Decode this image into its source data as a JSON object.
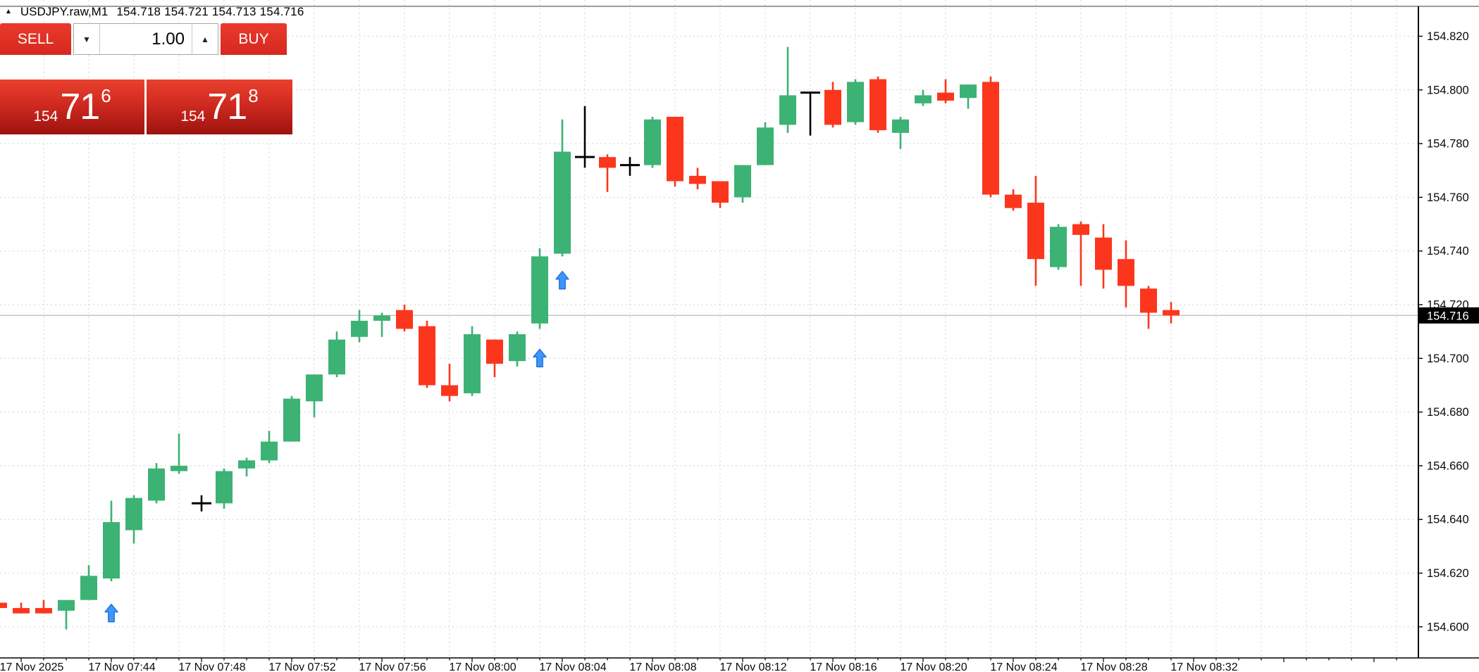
{
  "header": {
    "symbol_timeframe": "USDJPY.raw,M1",
    "ohlc_line": "154.718 154.721 154.713 154.716",
    "collapse_icon": "▲"
  },
  "trade_panel": {
    "sell_label": "SELL",
    "buy_label": "BUY",
    "volume_value": "1.00",
    "spin_down_icon": "▼",
    "spin_up_icon": "▲",
    "sell_price_prefix": "154",
    "sell_price_main": "71",
    "sell_price_sup": "6",
    "buy_price_prefix": "154",
    "buy_price_main": "71",
    "buy_price_sup": "8"
  },
  "colors": {
    "bull": "#3CB274",
    "bear": "#FC361D",
    "doji": "#000000",
    "marker_blue": "#3B97FC",
    "marker_blue_edge": "#1F6FD8",
    "grid": "#D4D4D4",
    "last_price_line": "#B9B9B9",
    "axis_text": "#0A0A0A",
    "tag_bg": "#000000",
    "tag_text": "#FFFFFF",
    "panel_red": "#E23028"
  },
  "chart_data": {
    "type": "candlestick",
    "symbol": "USDJPY.raw",
    "timeframe": "M1",
    "title": "USDJPY.raw,M1 154.718 154.721 154.713 154.716",
    "ylim": [
      154.598,
      154.823
    ],
    "grid": "dashed",
    "last_price": "154.716",
    "y_ticks": [
      "154.820",
      "154.800",
      "154.780",
      "154.760",
      "154.740",
      "154.720",
      "154.700",
      "154.680",
      "154.660",
      "154.640",
      "154.620",
      "154.600"
    ],
    "x_labels": [
      "17 Nov 2025",
      "17 Nov 07:44",
      "17 Nov 07:48",
      "17 Nov 07:52",
      "17 Nov 07:56",
      "17 Nov 08:00",
      "17 Nov 08:04",
      "17 Nov 08:08",
      "17 Nov 08:12",
      "17 Nov 08:16",
      "17 Nov 08:20",
      "17 Nov 08:24",
      "17 Nov 08:28",
      "17 Nov 08:32"
    ],
    "candles": [
      {
        "t": "07:39",
        "o": 154.609,
        "h": 154.61,
        "l": 154.606,
        "c": 154.607,
        "k": "down"
      },
      {
        "t": "07:40",
        "o": 154.607,
        "h": 154.609,
        "l": 154.605,
        "c": 154.605,
        "k": "down"
      },
      {
        "t": "07:41",
        "o": 154.607,
        "h": 154.61,
        "l": 154.605,
        "c": 154.605,
        "k": "down"
      },
      {
        "t": "07:42",
        "o": 154.606,
        "h": 154.61,
        "l": 154.599,
        "c": 154.61,
        "k": "up"
      },
      {
        "t": "07:43",
        "o": 154.61,
        "h": 154.623,
        "l": 154.61,
        "c": 154.619,
        "k": "up"
      },
      {
        "t": "07:44",
        "o": 154.618,
        "h": 154.647,
        "l": 154.617,
        "c": 154.639,
        "k": "up"
      },
      {
        "t": "07:45",
        "o": 154.636,
        "h": 154.649,
        "l": 154.631,
        "c": 154.648,
        "k": "up"
      },
      {
        "t": "07:46",
        "o": 154.647,
        "h": 154.661,
        "l": 154.646,
        "c": 154.659,
        "k": "up"
      },
      {
        "t": "07:47",
        "o": 154.658,
        "h": 154.672,
        "l": 154.657,
        "c": 154.66,
        "k": "up"
      },
      {
        "t": "07:48",
        "o": 154.646,
        "h": 154.649,
        "l": 154.643,
        "c": 154.646,
        "k": "doji"
      },
      {
        "t": "07:49",
        "o": 154.646,
        "h": 154.659,
        "l": 154.644,
        "c": 154.658,
        "k": "up"
      },
      {
        "t": "07:50",
        "o": 154.659,
        "h": 154.663,
        "l": 154.656,
        "c": 154.662,
        "k": "up"
      },
      {
        "t": "07:51",
        "o": 154.662,
        "h": 154.673,
        "l": 154.661,
        "c": 154.669,
        "k": "up"
      },
      {
        "t": "07:52",
        "o": 154.669,
        "h": 154.686,
        "l": 154.669,
        "c": 154.685,
        "k": "up"
      },
      {
        "t": "07:53",
        "o": 154.684,
        "h": 154.694,
        "l": 154.678,
        "c": 154.694,
        "k": "up"
      },
      {
        "t": "07:54",
        "o": 154.694,
        "h": 154.71,
        "l": 154.693,
        "c": 154.707,
        "k": "up"
      },
      {
        "t": "07:55",
        "o": 154.708,
        "h": 154.718,
        "l": 154.706,
        "c": 154.714,
        "k": "up"
      },
      {
        "t": "07:56",
        "o": 154.714,
        "h": 154.717,
        "l": 154.708,
        "c": 154.716,
        "k": "up"
      },
      {
        "t": "07:57",
        "o": 154.718,
        "h": 154.72,
        "l": 154.71,
        "c": 154.711,
        "k": "down"
      },
      {
        "t": "07:58",
        "o": 154.712,
        "h": 154.714,
        "l": 154.689,
        "c": 154.69,
        "k": "down"
      },
      {
        "t": "07:59",
        "o": 154.69,
        "h": 154.698,
        "l": 154.684,
        "c": 154.686,
        "k": "down"
      },
      {
        "t": "08:00",
        "o": 154.687,
        "h": 154.712,
        "l": 154.686,
        "c": 154.709,
        "k": "up"
      },
      {
        "t": "08:01",
        "o": 154.707,
        "h": 154.707,
        "l": 154.693,
        "c": 154.698,
        "k": "down"
      },
      {
        "t": "08:02",
        "o": 154.699,
        "h": 154.71,
        "l": 154.697,
        "c": 154.709,
        "k": "up"
      },
      {
        "t": "08:03",
        "o": 154.713,
        "h": 154.741,
        "l": 154.711,
        "c": 154.738,
        "k": "up"
      },
      {
        "t": "08:04",
        "o": 154.739,
        "h": 154.789,
        "l": 154.738,
        "c": 154.777,
        "k": "up"
      },
      {
        "t": "08:05",
        "o": 154.775,
        "h": 154.794,
        "l": 154.771,
        "c": 154.775,
        "k": "doji"
      },
      {
        "t": "08:06",
        "o": 154.775,
        "h": 154.776,
        "l": 154.762,
        "c": 154.771,
        "k": "down"
      },
      {
        "t": "08:07",
        "o": 154.772,
        "h": 154.775,
        "l": 154.768,
        "c": 154.772,
        "k": "doji"
      },
      {
        "t": "08:08",
        "o": 154.772,
        "h": 154.79,
        "l": 154.771,
        "c": 154.789,
        "k": "up"
      },
      {
        "t": "08:09",
        "o": 154.79,
        "h": 154.79,
        "l": 154.764,
        "c": 154.766,
        "k": "down"
      },
      {
        "t": "08:10",
        "o": 154.768,
        "h": 154.771,
        "l": 154.763,
        "c": 154.765,
        "k": "down"
      },
      {
        "t": "08:11",
        "o": 154.766,
        "h": 154.766,
        "l": 154.756,
        "c": 154.758,
        "k": "down"
      },
      {
        "t": "08:12",
        "o": 154.76,
        "h": 154.772,
        "l": 154.758,
        "c": 154.772,
        "k": "up"
      },
      {
        "t": "08:13",
        "o": 154.772,
        "h": 154.788,
        "l": 154.772,
        "c": 154.786,
        "k": "up"
      },
      {
        "t": "08:14",
        "o": 154.787,
        "h": 154.816,
        "l": 154.784,
        "c": 154.798,
        "k": "up"
      },
      {
        "t": "08:15",
        "o": 154.799,
        "h": 154.799,
        "l": 154.783,
        "c": 154.799,
        "k": "doji"
      },
      {
        "t": "08:16",
        "o": 154.8,
        "h": 154.803,
        "l": 154.786,
        "c": 154.787,
        "k": "down"
      },
      {
        "t": "08:17",
        "o": 154.788,
        "h": 154.804,
        "l": 154.787,
        "c": 154.803,
        "k": "up"
      },
      {
        "t": "08:18",
        "o": 154.804,
        "h": 154.805,
        "l": 154.784,
        "c": 154.785,
        "k": "down"
      },
      {
        "t": "08:19",
        "o": 154.784,
        "h": 154.79,
        "l": 154.778,
        "c": 154.789,
        "k": "up"
      },
      {
        "t": "08:20",
        "o": 154.795,
        "h": 154.8,
        "l": 154.794,
        "c": 154.798,
        "k": "up"
      },
      {
        "t": "08:21",
        "o": 154.799,
        "h": 154.804,
        "l": 154.795,
        "c": 154.796,
        "k": "down"
      },
      {
        "t": "08:22",
        "o": 154.797,
        "h": 154.802,
        "l": 154.793,
        "c": 154.802,
        "k": "up"
      },
      {
        "t": "08:23",
        "o": 154.803,
        "h": 154.805,
        "l": 154.76,
        "c": 154.761,
        "k": "down"
      },
      {
        "t": "08:24",
        "o": 154.761,
        "h": 154.763,
        "l": 154.755,
        "c": 154.756,
        "k": "down"
      },
      {
        "t": "08:25",
        "o": 154.758,
        "h": 154.768,
        "l": 154.727,
        "c": 154.737,
        "k": "down"
      },
      {
        "t": "08:26",
        "o": 154.734,
        "h": 154.75,
        "l": 154.733,
        "c": 154.749,
        "k": "up"
      },
      {
        "t": "08:27",
        "o": 154.75,
        "h": 154.751,
        "l": 154.727,
        "c": 154.746,
        "k": "down"
      },
      {
        "t": "08:28",
        "o": 154.745,
        "h": 154.75,
        "l": 154.726,
        "c": 154.733,
        "k": "down"
      },
      {
        "t": "08:29",
        "o": 154.737,
        "h": 154.744,
        "l": 154.719,
        "c": 154.727,
        "k": "down"
      },
      {
        "t": "08:30",
        "o": 154.726,
        "h": 154.727,
        "l": 154.711,
        "c": 154.717,
        "k": "down"
      },
      {
        "t": "08:31",
        "o": 154.718,
        "h": 154.721,
        "l": 154.713,
        "c": 154.716,
        "k": "down"
      }
    ],
    "markers": [
      {
        "type": "buy-arrow",
        "time": "07:44",
        "index": 5,
        "price": 154.605
      },
      {
        "type": "buy-arrow",
        "time": "08:03",
        "index": 24,
        "price": 154.7
      },
      {
        "type": "buy-arrow",
        "time": "08:04",
        "index": 25,
        "price": 154.729
      }
    ]
  }
}
